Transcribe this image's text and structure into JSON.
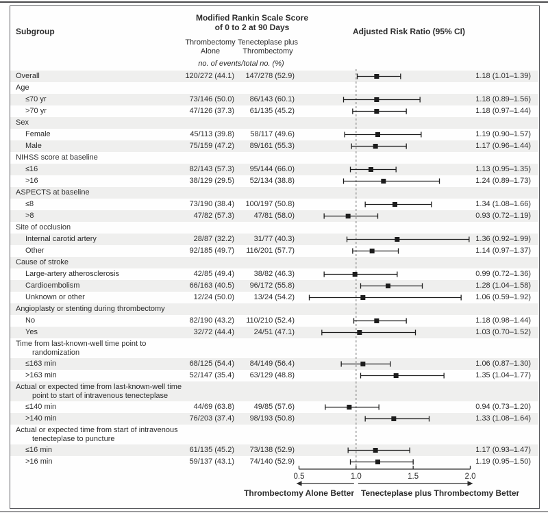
{
  "header": {
    "subgroup": "Subgroup",
    "outcome_title_line1": "Modified Rankin Scale Score",
    "outcome_title_line2": "of 0 to 2 at 90 Days",
    "col1_line1": "Thrombectomy",
    "col1_line2": "Alone",
    "col2_line1": "Tenecteplase plus",
    "col2_line2": "Thrombectomy",
    "units_note": "no. of events/total no. (%)",
    "rr_title": "Adjusted Risk Ratio (95% CI)"
  },
  "footer": {
    "left_better": "Thrombectomy Alone Better",
    "right_better": "Tenecteplase plus Thrombectomy Better"
  },
  "colors": {
    "band": "#efefee",
    "marker": "#1c1c1c",
    "reference_line": "#8a8a8a",
    "axis": "#2b2b2b"
  },
  "chart_data": {
    "type": "forest",
    "x_axis": {
      "range": [
        0.5,
        2.0
      ],
      "ticks": [
        0.5,
        1.0,
        1.5,
        2.0
      ],
      "tick_labels": [
        "0.5",
        "1.0",
        "1.5",
        "2.0"
      ],
      "reference_line": 1.0,
      "scale": "linear"
    },
    "rows": [
      {
        "label": "Overall",
        "indent": false,
        "header": false,
        "shaded": true,
        "col1": "120/272 (44.1)",
        "col2": "147/278 (52.9)",
        "rr": 1.18,
        "lo": 1.01,
        "hi": 1.39,
        "rr_text": "1.18 (1.01–1.39)"
      },
      {
        "label": "Age",
        "indent": false,
        "header": true,
        "shaded": false
      },
      {
        "label": "≤70 yr",
        "indent": true,
        "header": false,
        "shaded": true,
        "col1": "73/146 (50.0)",
        "col2": "86/143 (60.1)",
        "rr": 1.18,
        "lo": 0.89,
        "hi": 1.56,
        "rr_text": "1.18 (0.89–1.56)"
      },
      {
        "label": ">70 yr",
        "indent": true,
        "header": false,
        "shaded": false,
        "col1": "47/126 (37.3)",
        "col2": "61/135 (45.2)",
        "rr": 1.18,
        "lo": 0.97,
        "hi": 1.44,
        "rr_text": "1.18 (0.97–1.44)"
      },
      {
        "label": "Sex",
        "indent": false,
        "header": true,
        "shaded": true
      },
      {
        "label": "Female",
        "indent": true,
        "header": false,
        "shaded": false,
        "col1": "45/113 (39.8)",
        "col2": "58/117 (49.6)",
        "rr": 1.19,
        "lo": 0.9,
        "hi": 1.57,
        "rr_text": "1.19 (0.90–1.57)"
      },
      {
        "label": "Male",
        "indent": true,
        "header": false,
        "shaded": true,
        "col1": "75/159 (47.2)",
        "col2": "89/161 (55.3)",
        "rr": 1.17,
        "lo": 0.96,
        "hi": 1.44,
        "rr_text": "1.17 (0.96–1.44)"
      },
      {
        "label": "NIHSS score at baseline",
        "indent": false,
        "header": true,
        "shaded": false
      },
      {
        "label": "≤16",
        "indent": true,
        "header": false,
        "shaded": true,
        "col1": "82/143 (57.3)",
        "col2": "95/144 (66.0)",
        "rr": 1.13,
        "lo": 0.95,
        "hi": 1.35,
        "rr_text": "1.13 (0.95–1.35)"
      },
      {
        "label": ">16",
        "indent": true,
        "header": false,
        "shaded": false,
        "col1": "38/129 (29.5)",
        "col2": "52/134 (38.8)",
        "rr": 1.24,
        "lo": 0.89,
        "hi": 1.73,
        "rr_text": "1.24 (0.89–1.73)"
      },
      {
        "label": "ASPECTS at baseline",
        "indent": false,
        "header": true,
        "shaded": true
      },
      {
        "label": "≤8",
        "indent": true,
        "header": false,
        "shaded": false,
        "col1": "73/190 (38.4)",
        "col2": "100/197 (50.8)",
        "rr": 1.34,
        "lo": 1.08,
        "hi": 1.66,
        "rr_text": "1.34 (1.08–1.66)"
      },
      {
        "label": ">8",
        "indent": true,
        "header": false,
        "shaded": true,
        "col1": "47/82 (57.3)",
        "col2": "47/81 (58.0)",
        "rr": 0.93,
        "lo": 0.72,
        "hi": 1.19,
        "rr_text": "0.93 (0.72–1.19)"
      },
      {
        "label": "Site of occlusion",
        "indent": false,
        "header": true,
        "shaded": false
      },
      {
        "label": "Internal carotid artery",
        "indent": true,
        "header": false,
        "shaded": true,
        "col1": "28/87 (32.2)",
        "col2": "31/77 (40.3)",
        "rr": 1.36,
        "lo": 0.92,
        "hi": 1.99,
        "rr_text": "1.36 (0.92–1.99)"
      },
      {
        "label": "Other",
        "indent": true,
        "header": false,
        "shaded": false,
        "col1": "92/185 (49.7)",
        "col2": "116/201 (57.7)",
        "rr": 1.14,
        "lo": 0.97,
        "hi": 1.37,
        "rr_text": "1.14 (0.97–1.37)"
      },
      {
        "label": "Cause of stroke",
        "indent": false,
        "header": true,
        "shaded": true
      },
      {
        "label": "Large-artery atherosclerosis",
        "indent": true,
        "header": false,
        "shaded": false,
        "col1": "42/85 (49.4)",
        "col2": "38/82 (46.3)",
        "rr": 0.99,
        "lo": 0.72,
        "hi": 1.36,
        "rr_text": "0.99 (0.72–1.36)"
      },
      {
        "label": "Cardioembolism",
        "indent": true,
        "header": false,
        "shaded": true,
        "col1": "66/163 (40.5)",
        "col2": "96/172 (55.8)",
        "rr": 1.28,
        "lo": 1.04,
        "hi": 1.58,
        "rr_text": "1.28 (1.04–1.58)"
      },
      {
        "label": "Unknown or other",
        "indent": true,
        "header": false,
        "shaded": false,
        "col1": "12/24 (50.0)",
        "col2": "13/24 (54.2)",
        "rr": 1.06,
        "lo": 0.59,
        "hi": 1.92,
        "rr_text": "1.06 (0.59–1.92)"
      },
      {
        "label": "Angioplasty or stenting during thrombectomy",
        "indent": false,
        "header": true,
        "shaded": true
      },
      {
        "label": "No",
        "indent": true,
        "header": false,
        "shaded": false,
        "col1": "82/190 (43.2)",
        "col2": "110/210 (52.4)",
        "rr": 1.18,
        "lo": 0.98,
        "hi": 1.44,
        "rr_text": "1.18 (0.98–1.44)"
      },
      {
        "label": "Yes",
        "indent": true,
        "header": false,
        "shaded": true,
        "col1": "32/72 (44.4)",
        "col2": "24/51 (47.1)",
        "rr": 1.03,
        "lo": 0.7,
        "hi": 1.52,
        "rr_text": "1.03 (0.70–1.52)"
      },
      {
        "label": "Time from last-known-well time point to",
        "label2": "randomization",
        "indent": false,
        "header": true,
        "shaded": false
      },
      {
        "label": "≤163 min",
        "indent": true,
        "header": false,
        "shaded": true,
        "col1": "68/125 (54.4)",
        "col2": "84/149 (56.4)",
        "rr": 1.06,
        "lo": 0.87,
        "hi": 1.3,
        "rr_text": "1.06 (0.87–1.30)"
      },
      {
        "label": ">163 min",
        "indent": true,
        "header": false,
        "shaded": false,
        "col1": "52/147 (35.4)",
        "col2": "63/129 (48.8)",
        "rr": 1.35,
        "lo": 1.04,
        "hi": 1.77,
        "rr_text": "1.35 (1.04–1.77)"
      },
      {
        "label": "Actual or expected time from last-known-well time",
        "label2": "point to start of intravenous tenecteplase",
        "indent": false,
        "header": true,
        "shaded": true
      },
      {
        "label": "≤140 min",
        "indent": true,
        "header": false,
        "shaded": false,
        "col1": "44/69 (63.8)",
        "col2": "49/85 (57.6)",
        "rr": 0.94,
        "lo": 0.73,
        "hi": 1.2,
        "rr_text": "0.94 (0.73–1.20)"
      },
      {
        "label": ">140 min",
        "indent": true,
        "header": false,
        "shaded": true,
        "col1": "76/203 (37.4)",
        "col2": "98/193 (50.8)",
        "rr": 1.33,
        "lo": 1.08,
        "hi": 1.64,
        "rr_text": "1.33 (1.08–1.64)"
      },
      {
        "label": "Actual or expected time from start of intravenous",
        "label2": "tenecteplase to puncture",
        "indent": false,
        "header": true,
        "shaded": false
      },
      {
        "label": "≤16 min",
        "indent": true,
        "header": false,
        "shaded": true,
        "col1": "61/135 (45.2)",
        "col2": "73/138 (52.9)",
        "rr": 1.17,
        "lo": 0.93,
        "hi": 1.47,
        "rr_text": "1.17 (0.93–1.47)"
      },
      {
        "label": ">16 min",
        "indent": true,
        "header": false,
        "shaded": false,
        "col1": "59/137 (43.1)",
        "col2": "74/140 (52.9)",
        "rr": 1.19,
        "lo": 0.95,
        "hi": 1.5,
        "rr_text": "1.19 (0.95–1.50)"
      }
    ]
  }
}
